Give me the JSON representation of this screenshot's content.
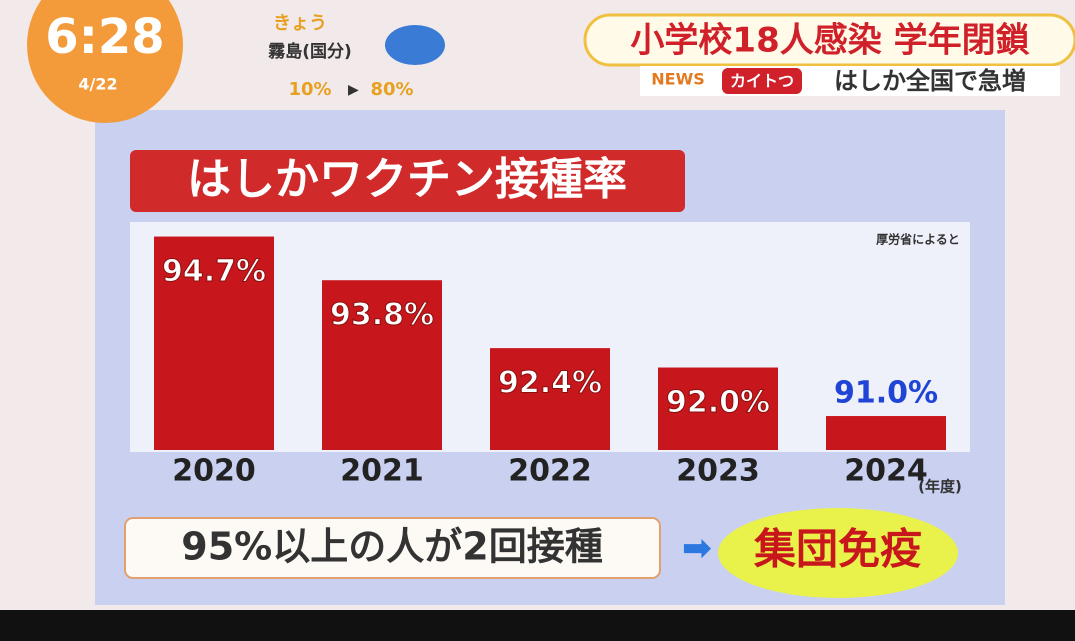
{
  "overlay": {
    "time": "6:28",
    "date": "4/22",
    "weather_day": "きょう",
    "weather_place": "霧島(国分)",
    "rain_from": "10%",
    "rain_to": "80%",
    "headline": "小学校18人感染 学年閉鎖",
    "news_tag": "NEWS",
    "corner": "カイトつ",
    "subheadline": "はしか全国で急増"
  },
  "chart_data": {
    "type": "bar",
    "title": "はしかワクチン接種率",
    "source": "厚労省によると",
    "categories": [
      "2020",
      "2021",
      "2022",
      "2023",
      "2024"
    ],
    "unit_note": "(年度)",
    "values": [
      94.7,
      93.8,
      92.4,
      92.0,
      91.0
    ],
    "value_labels": [
      "94.7%",
      "93.8%",
      "92.4%",
      "92.0%",
      "91.0%"
    ],
    "label_colors": [
      "#ffffff",
      "#ffffff",
      "#ffffff",
      "#ffffff",
      "#1f44d6"
    ],
    "color": "#c8161d",
    "ylim": [
      90.3,
      95
    ]
  },
  "footer": {
    "note": "95%以上の人が2回接種",
    "result": "集団免疫"
  }
}
